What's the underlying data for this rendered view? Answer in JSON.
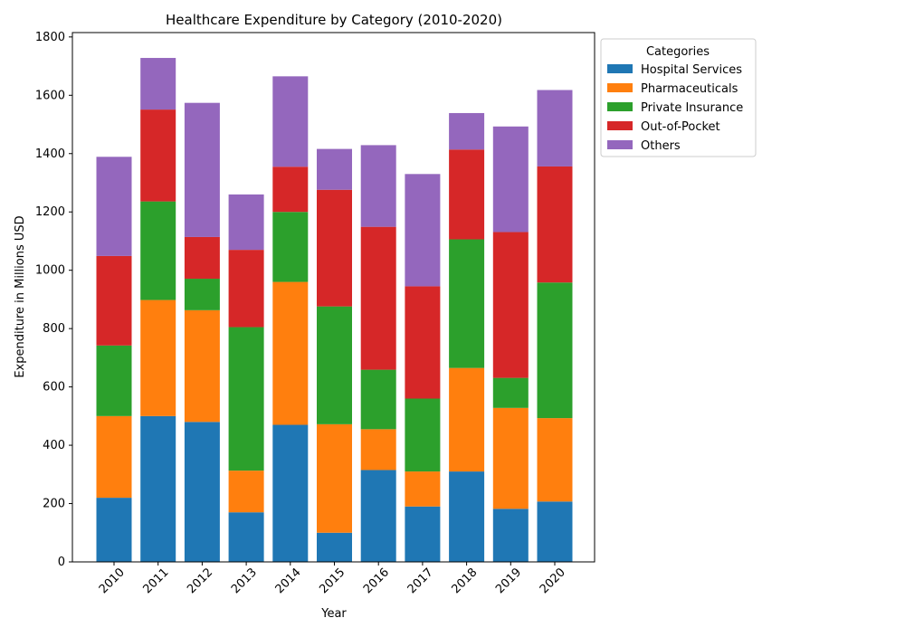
{
  "chart_data": {
    "type": "bar",
    "stacked": true,
    "title": "Healthcare Expenditure by Category (2010-2020)",
    "xlabel": "Year",
    "ylabel": "Expenditure in Millions USD",
    "categories": [
      "2010",
      "2011",
      "2012",
      "2013",
      "2014",
      "2015",
      "2016",
      "2017",
      "2018",
      "2019",
      "2020"
    ],
    "ylim": [
      0,
      1815
    ],
    "yticks": [
      0,
      200,
      400,
      600,
      800,
      1000,
      1200,
      1400,
      1600,
      1800
    ],
    "grid": false,
    "legend": {
      "title": "Categories",
      "placement": "outside top-right"
    },
    "series": [
      {
        "name": "Hospital Services",
        "color": "#1f77b4",
        "values": [
          220,
          500,
          480,
          170,
          470,
          100,
          315,
          190,
          310,
          182,
          207
        ]
      },
      {
        "name": "Pharmaceuticals",
        "color": "#ff7f0e",
        "values": [
          280,
          398,
          383,
          143,
          490,
          372,
          140,
          120,
          355,
          346,
          286
        ]
      },
      {
        "name": "Private Insurance",
        "color": "#2ca02c",
        "values": [
          242,
          338,
          108,
          492,
          240,
          404,
          204,
          250,
          441,
          103,
          465
        ]
      },
      {
        "name": "Out-of-Pocket",
        "color": "#d62728",
        "values": [
          307,
          315,
          143,
          265,
          155,
          400,
          490,
          385,
          308,
          500,
          398
        ]
      },
      {
        "name": "Others",
        "color": "#9467bd",
        "values": [
          340,
          177,
          460,
          190,
          310,
          140,
          280,
          385,
          125,
          362,
          262
        ]
      }
    ]
  }
}
